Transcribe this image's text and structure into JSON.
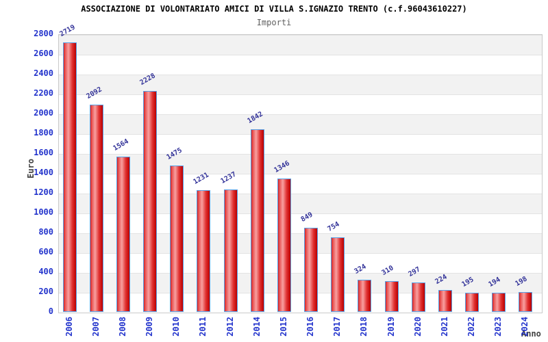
{
  "header": {
    "title": "ASSOCIAZIONE DI VOLONTARIATO AMICI DI VILLA S.IGNAZIO TRENTO (c.f.96043610227)",
    "subtitle": "Importi"
  },
  "chart_data": {
    "type": "bar",
    "title": "ASSOCIAZIONE DI VOLONTARIATO AMICI DI VILLA S.IGNAZIO TRENTO (c.f.96043610227)",
    "subtitle": "Importi",
    "xlabel": "Anno",
    "ylabel": "Euro",
    "categories": [
      "2006",
      "2007",
      "2008",
      "2009",
      "2010",
      "2011",
      "2012",
      "2014",
      "2015",
      "2016",
      "2017",
      "2018",
      "2019",
      "2020",
      "2021",
      "2022",
      "2023",
      "2024"
    ],
    "values": [
      2719,
      2092,
      1564,
      2228,
      1475,
      1231,
      1237,
      1842,
      1346,
      849,
      754,
      324,
      310,
      297,
      224,
      195,
      194,
      198
    ],
    "ylim": [
      0,
      2800
    ],
    "yticks": [
      0,
      200,
      400,
      600,
      800,
      1000,
      1200,
      1400,
      1600,
      1800,
      2000,
      2200,
      2400,
      2600,
      2800
    ],
    "grid": "horizontal lines with alternating gray/white bands",
    "legend": "none",
    "colors": {
      "bar_fill_left": "#d82020",
      "bar_fill_highlight": "#f8a0a0",
      "bar_fill_right": "#bb0000",
      "bar_border": "#55a0e6",
      "tick_label": "#2233cc",
      "value_label": "#333399",
      "band_gray": "#f2f2f2",
      "band_white": "#ffffff",
      "gridline": "#e3e3e3",
      "plot_border": "#c9c9c9",
      "axis_title": "#404040",
      "title": "#000000",
      "subtitle": "#606060"
    }
  }
}
